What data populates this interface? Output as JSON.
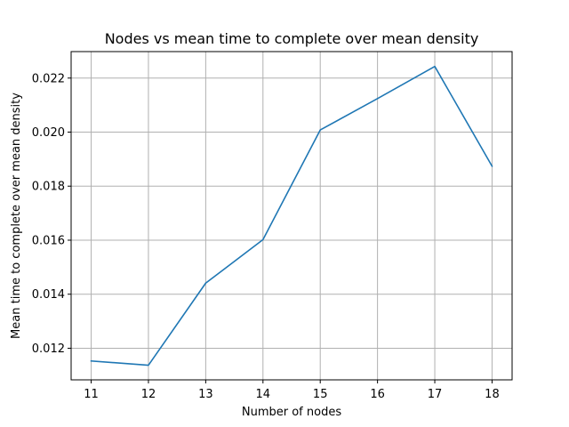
{
  "chart_data": {
    "type": "line",
    "title": "Nodes vs mean time to complete over mean density",
    "xlabel": "Number of nodes",
    "ylabel": "Mean time to complete over mean density",
    "x": [
      11,
      12,
      13,
      14,
      15,
      16,
      17,
      18
    ],
    "series": [
      {
        "values": [
          0.01153,
          0.01137,
          0.01441,
          0.01602,
          0.02008,
          0.02124,
          0.02243,
          0.01874
        ],
        "color": "#1f77b4"
      }
    ],
    "xlim": [
      10.65,
      18.35
    ],
    "ylim": [
      0.01083,
      0.02298
    ],
    "xticks": [
      11,
      12,
      13,
      14,
      15,
      16,
      17,
      18
    ],
    "xtick_labels": [
      "11",
      "12",
      "13",
      "14",
      "15",
      "16",
      "17",
      "18"
    ],
    "yticks": [
      0.012,
      0.014,
      0.016,
      0.018,
      0.02,
      0.022
    ],
    "ytick_labels": [
      "0.012",
      "0.014",
      "0.016",
      "0.018",
      "0.020",
      "0.022"
    ],
    "grid": true,
    "grid_color": "#b0b0b0"
  }
}
